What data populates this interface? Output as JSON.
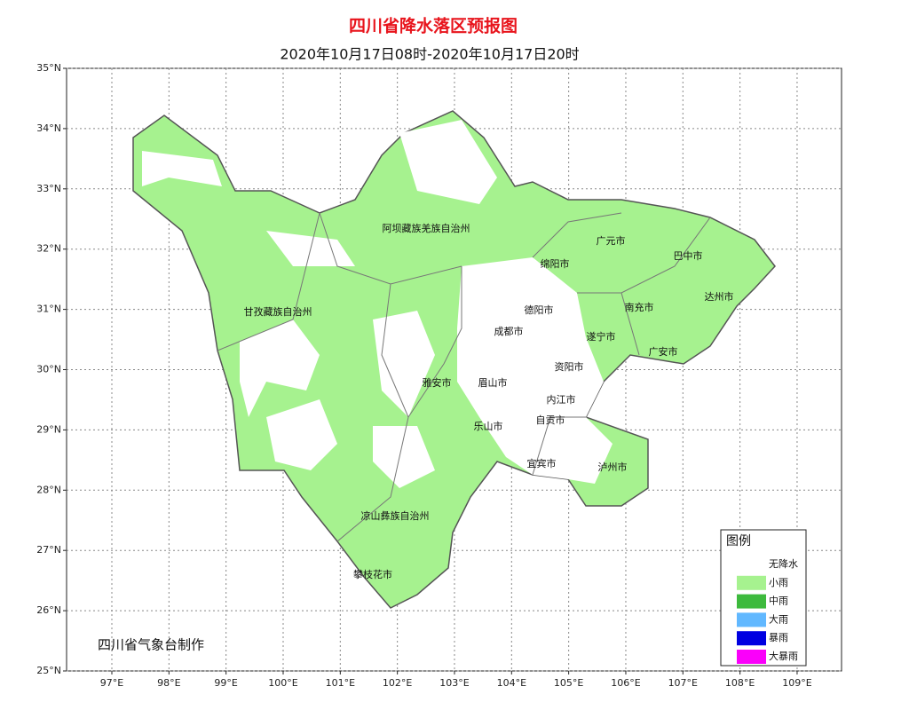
{
  "title": "四川省降水落区预报图",
  "subtitle": "2020年10月17日08时-2020年10月17日20时",
  "map": {
    "lat_ticks": [
      {
        "value": 35,
        "label": "35°N"
      },
      {
        "value": 34,
        "label": "34°N"
      },
      {
        "value": 33,
        "label": "33°N"
      },
      {
        "value": 32,
        "label": "32°N"
      },
      {
        "value": 31,
        "label": "31°N"
      },
      {
        "value": 30,
        "label": "30°N"
      },
      {
        "value": 29,
        "label": "29°N"
      },
      {
        "value": 28,
        "label": "28°N"
      },
      {
        "value": 27,
        "label": "27°N"
      },
      {
        "value": 26,
        "label": "26°N"
      },
      {
        "value": 25,
        "label": "25°N"
      }
    ],
    "lon_ticks": [
      {
        "value": 97,
        "label": "97°E"
      },
      {
        "value": 98,
        "label": "98°E"
      },
      {
        "value": 99,
        "label": "99°E"
      },
      {
        "value": 100,
        "label": "100°E"
      },
      {
        "value": 101,
        "label": "101°E"
      },
      {
        "value": 102,
        "label": "102°E"
      },
      {
        "value": 103,
        "label": "103°E"
      },
      {
        "value": 104,
        "label": "104°E"
      },
      {
        "value": 105,
        "label": "105°E"
      },
      {
        "value": 106,
        "label": "106°E"
      },
      {
        "value": 107,
        "label": "107°E"
      },
      {
        "value": 108,
        "label": "108°E"
      },
      {
        "value": 109,
        "label": "109°E"
      }
    ],
    "grid": true,
    "regions": [
      "阿坝藏族羌族自治州",
      "甘孜藏族自治州",
      "凉山彝族自治州",
      "攀枝花市",
      "雅安市",
      "眉山市",
      "乐山市",
      "成都市",
      "德阳市",
      "绵阳市",
      "广元市",
      "巴中市",
      "达州市",
      "南充市",
      "遂宁市",
      "广安市",
      "资阳市",
      "内江市",
      "自贡市",
      "宜宾市",
      "泸州市"
    ]
  },
  "legend": {
    "title": "图例",
    "items": [
      {
        "label": "无降水",
        "color": "#ffffff"
      },
      {
        "label": "小雨",
        "color": "#a6f28f"
      },
      {
        "label": "中雨",
        "color": "#3dba3d"
      },
      {
        "label": "大雨",
        "color": "#61b8ff"
      },
      {
        "label": "暴雨",
        "color": "#0000e1"
      },
      {
        "label": "大暴雨",
        "color": "#fa00fa"
      }
    ]
  },
  "credit": "四川省气象台制作"
}
